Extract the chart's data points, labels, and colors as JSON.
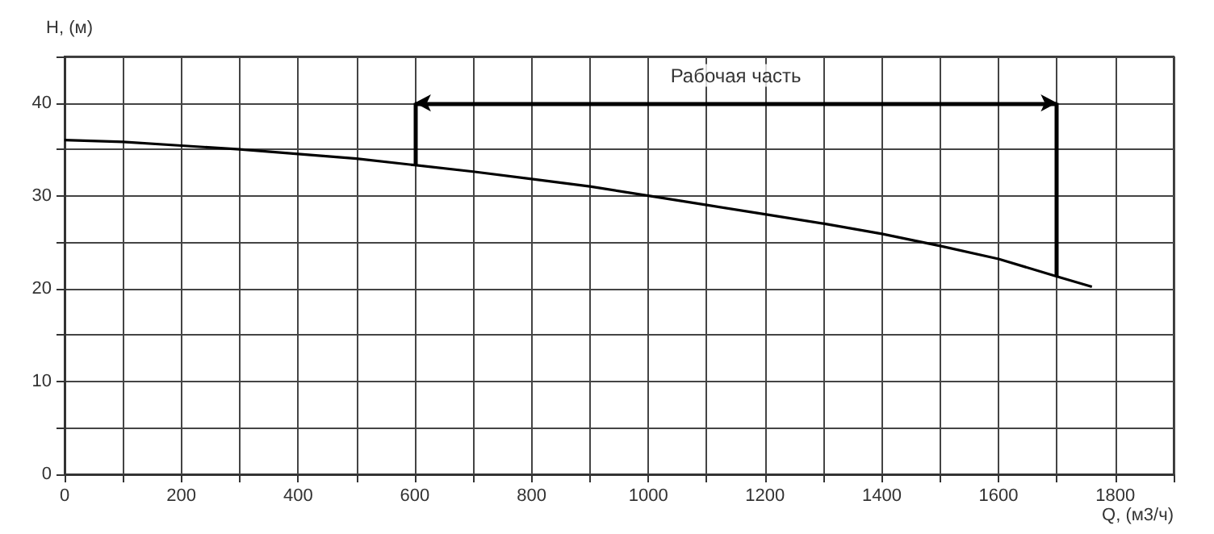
{
  "chart_data": {
    "type": "line",
    "xlabel": "Q, (м3/ч)",
    "ylabel": "H, (м)",
    "x": [
      0,
      100,
      200,
      300,
      400,
      500,
      600,
      700,
      800,
      900,
      1000,
      1100,
      1200,
      1300,
      1400,
      1500,
      1600,
      1700,
      1760
    ],
    "series": [
      {
        "color": "#000000",
        "values": [
          36,
          35.8,
          35.4,
          35,
          34.5,
          34,
          33.3,
          32.6,
          31.8,
          31,
          30,
          29,
          28,
          27,
          25.9,
          24.6,
          23.2,
          21.3,
          20.2
        ]
      }
    ],
    "xlim": [
      0,
      1900
    ],
    "xticks": [
      0,
      {
        "value": 100,
        "label": null
      },
      200,
      {
        "value": 300,
        "label": null
      },
      400,
      {
        "value": 500,
        "label": null
      },
      600,
      {
        "value": 700,
        "label": null
      },
      800,
      {
        "value": 900,
        "label": null
      },
      1000,
      {
        "value": 1100,
        "label": null
      },
      1200,
      {
        "value": 1300,
        "label": null
      },
      1400,
      {
        "value": 1500,
        "label": null
      },
      1600,
      {
        "value": 1700,
        "label": null
      },
      1800,
      {
        "value": 1900,
        "label": null
      }
    ],
    "ylim": [
      0,
      45
    ],
    "yticks": [
      0,
      {
        "value": 5,
        "label": null
      },
      10,
      {
        "value": 15,
        "label": null
      },
      20,
      {
        "value": 25,
        "label": null
      },
      30,
      {
        "value": 35,
        "label": null
      },
      40,
      {
        "value": 45,
        "label": null
      }
    ],
    "ref_lines": [
      {
        "axis": "x",
        "value": 600,
        "color": "#000000"
      },
      {
        "axis": "x",
        "value": 1700,
        "color": "#000000"
      }
    ],
    "annotations": [
      "Рабочая часть"
    ],
    "grid": true
  }
}
